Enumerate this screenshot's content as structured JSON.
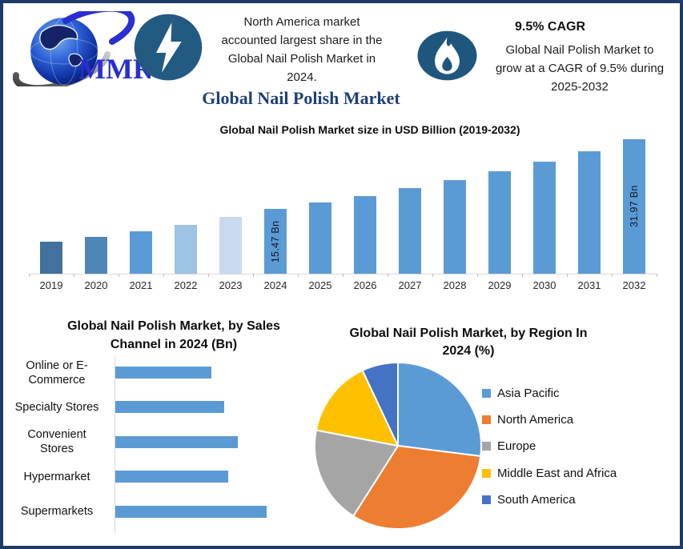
{
  "page": {
    "border_color": "#1e3a66",
    "background": "#ffffff"
  },
  "header": {
    "logo_text": "MMR",
    "headline": "North America market accounted largest share in the Global Nail Polish Market in 2024.",
    "headline_lines": [
      "North America market",
      "accounted largest share in the",
      "Global Nail Polish Market in",
      "2024."
    ],
    "title": "Global Nail Polish Market",
    "cagr": {
      "title": "9.5% CAGR",
      "text": "Global Nail Polish Market to grow at a CAGR of 9.5% during 2025-2032",
      "text_lines": [
        "Global Nail Polish Market to",
        "grow at a CAGR of 9.5% during",
        "2025-2032"
      ]
    },
    "icons": {
      "lightning_bg": "#235a82",
      "flame_bg": "#1e567e"
    }
  },
  "chart_data": [
    {
      "id": "market-size",
      "type": "bar",
      "title": "Global Nail Polish Market size in USD Billion (2019-2032)",
      "xlabel": "",
      "ylabel": "USD Billion",
      "categories": [
        "2019",
        "2020",
        "2021",
        "2022",
        "2023",
        "2024",
        "2025",
        "2026",
        "2027",
        "2028",
        "2029",
        "2030",
        "2031",
        "2032"
      ],
      "values": [
        7.7,
        8.85,
        10.15,
        11.6,
        13.45,
        15.47,
        16.94,
        18.55,
        20.31,
        22.24,
        24.35,
        26.67,
        29.2,
        31.97
      ],
      "unit": "Bn",
      "ylim": [
        0,
        34
      ],
      "grid": false,
      "bar_labels": {
        "2024": "15.47 Bn",
        "2032": "31.97 Bn"
      },
      "bar_colors": [
        "#41719c",
        "#4e86b8",
        "#5b9bd5",
        "#9dc3e6",
        "#c9daf0",
        "#5b9bd5",
        "#5b9bd5",
        "#5b9bd5",
        "#5b9bd5",
        "#5b9bd5",
        "#5b9bd5",
        "#5b9bd5",
        "#5b9bd5",
        "#5b9bd5"
      ]
    },
    {
      "id": "sales-channel",
      "type": "bar",
      "orientation": "horizontal",
      "title": "Global Nail Polish Market, by Sales Channel in 2024 (Bn)",
      "title_lines": [
        "Global Nail Polish Market, by Sales",
        "Channel  in 2024 (Bn)"
      ],
      "categories": [
        "Online or E-Commerce",
        "Specialty Stores",
        "Convenient Stores",
        "Hypermarket",
        "Supermarkets"
      ],
      "label_lines": [
        [
          "Online or E-",
          "Commerce"
        ],
        [
          "Specialty Stores"
        ],
        [
          "Convenient",
          "Stores"
        ],
        [
          "Hypermarket"
        ],
        [
          "Supermarkets"
        ]
      ],
      "values": [
        2.5,
        2.85,
        3.2,
        2.95,
        3.95
      ],
      "unit": "Bn",
      "xlim": [
        0,
        4.2
      ],
      "grid": false,
      "color": "#5b9bd5"
    },
    {
      "id": "region-share",
      "type": "pie",
      "title": "Global Nail Polish Market, by Region In 2024 (%)",
      "title_lines": [
        "Global Nail Polish Market, by Region In",
        "2024 (%)"
      ],
      "labels": [
        "Asia Pacific",
        "North America",
        "Europe",
        "Middle East and Africa",
        "South America"
      ],
      "values": [
        27,
        32,
        19,
        15,
        7
      ],
      "unit": "%",
      "colors": [
        "#5b9bd5",
        "#ed7d31",
        "#a5a5a5",
        "#ffc000",
        "#4472c4"
      ],
      "legend_position": "right",
      "start_angle_deg": 0
    }
  ]
}
